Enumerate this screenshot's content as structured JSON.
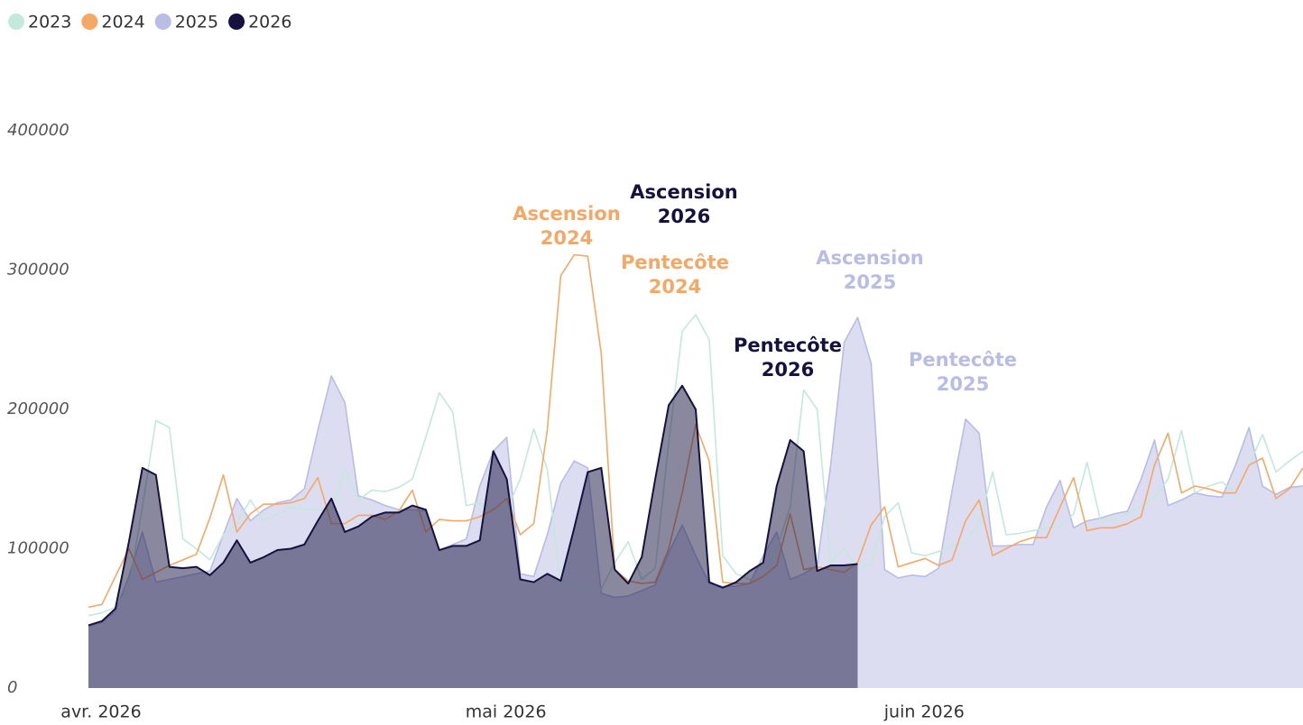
{
  "chart_data": {
    "type": "area",
    "categories": [
      "avr. 2026",
      null,
      null,
      null,
      null,
      null,
      null,
      null,
      null,
      null,
      null,
      null,
      null,
      null,
      null,
      null,
      null,
      null,
      null,
      null,
      null,
      null,
      null,
      null,
      null,
      null,
      null,
      null,
      null,
      null,
      "mai 2026",
      null,
      null,
      null,
      null,
      null,
      null,
      null,
      null,
      null,
      null,
      null,
      null,
      null,
      null,
      null,
      null,
      null,
      null,
      null,
      null,
      null,
      null,
      null,
      null,
      null,
      null,
      null,
      null,
      null,
      null,
      "juin 2026",
      null,
      null,
      null,
      null,
      null,
      null,
      null,
      null,
      null,
      null,
      null,
      null,
      null,
      null,
      null,
      null,
      null,
      null,
      null,
      null,
      null,
      null,
      null,
      null,
      null,
      null,
      null,
      null,
      null
    ],
    "ylim": [
      0,
      400000
    ],
    "yticks": [
      0,
      100000,
      200000,
      300000,
      400000
    ],
    "grid": false,
    "legend": "top-left",
    "series": [
      {
        "name": "2023",
        "color": "#c3e8dc",
        "style": "line",
        "values": [
          52000,
          54000,
          58000,
          72000,
          130000,
          192000,
          187000,
          107000,
          100000,
          92000,
          110000,
          118000,
          135000,
          120000,
          125000,
          130000,
          128000,
          128000,
          128000,
          157000,
          135000,
          142000,
          141000,
          144000,
          150000,
          180000,
          212000,
          198000,
          131000,
          133000,
          128000,
          128000,
          150000,
          186000,
          157000,
          74000,
          73000,
          72000,
          71000,
          90000,
          105000,
          78000,
          86000,
          176000,
          256000,
          268000,
          250000,
          95000,
          82000,
          78000,
          80000,
          100000,
          130000,
          214000,
          200000,
          90000,
          100000,
          85000,
          90000,
          123000,
          133000,
          97000,
          95000,
          98000,
          102000,
          105000,
          118000,
          155000,
          110000,
          111000,
          113000,
          115000,
          116000,
          125000,
          162000,
          120000,
          121000,
          125000,
          130000,
          137000,
          150000,
          185000,
          140000,
          145000,
          148000,
          140000,
          160000,
          182000,
          155000,
          163000,
          170000
        ]
      },
      {
        "name": "2024",
        "color": "#f4a866",
        "style": "line",
        "values": [
          58000,
          60000,
          80000,
          100000,
          78000,
          83000,
          88000,
          92000,
          96000,
          122000,
          153000,
          112000,
          125000,
          132000,
          132000,
          133000,
          136000,
          151000,
          118000,
          118000,
          124000,
          124000,
          121000,
          127000,
          142000,
          112000,
          121000,
          120000,
          120000,
          123000,
          128000,
          136000,
          110000,
          118000,
          185000,
          296000,
          311000,
          310000,
          240000,
          85000,
          77000,
          75000,
          76000,
          100000,
          140000,
          189000,
          163000,
          76000,
          75000,
          75000,
          80000,
          88000,
          125000,
          85000,
          87000,
          85000,
          83000,
          90000,
          117000,
          130000,
          87000,
          90000,
          93000,
          88000,
          92000,
          120000,
          135000,
          95000,
          100000,
          105000,
          108000,
          108000,
          130000,
          151000,
          113000,
          115000,
          115000,
          118000,
          123000,
          160000,
          183000,
          140000,
          145000,
          143000,
          140000,
          140000,
          160000,
          165000,
          136000,
          143000,
          158000
        ]
      },
      {
        "name": "2025",
        "color": "#b9bce4",
        "style": "area",
        "values": [
          44000,
          47000,
          55000,
          80000,
          112000,
          76000,
          78000,
          80000,
          82000,
          84000,
          110000,
          136000,
          120000,
          128000,
          133000,
          135000,
          143000,
          185000,
          224000,
          205000,
          138000,
          135000,
          131000,
          128000,
          128000,
          127000,
          99000,
          103000,
          107000,
          145000,
          170000,
          180000,
          82000,
          80000,
          110000,
          147000,
          163000,
          158000,
          68000,
          65000,
          66000,
          70000,
          74000,
          97000,
          117000,
          95000,
          75000,
          73000,
          73000,
          75000,
          95000,
          112000,
          78000,
          82000,
          88000,
          160000,
          248000,
          266000,
          233000,
          85000,
          79000,
          81000,
          80000,
          86000,
          142000,
          193000,
          183000,
          102000,
          102000,
          103000,
          103000,
          130000,
          149000,
          115000,
          120000,
          122000,
          125000,
          127000,
          150000,
          178000,
          131000,
          135000,
          140000,
          138000,
          137000,
          160000,
          187000,
          145000,
          139000,
          144000,
          145000
        ]
      },
      {
        "name": "2026",
        "color": "#15123f",
        "style": "area",
        "values": [
          45000,
          48000,
          57000,
          105000,
          158000,
          153000,
          87000,
          86000,
          87000,
          81000,
          90000,
          106000,
          90000,
          94000,
          99000,
          100000,
          103000,
          120000,
          136000,
          112000,
          116000,
          123000,
          126000,
          126000,
          131000,
          128000,
          99000,
          102000,
          102000,
          106000,
          170000,
          150000,
          78000,
          76000,
          82000,
          77000,
          115000,
          155000,
          158000,
          85000,
          75000,
          94000,
          150000,
          203000,
          217000,
          200000,
          76000,
          72000,
          76000,
          84000,
          90000,
          145000,
          178000,
          170000,
          84000,
          88000,
          88000,
          89000,
          null,
          null,
          null,
          null,
          null,
          null,
          null,
          null,
          null,
          null,
          null,
          null,
          null,
          null,
          null,
          null,
          null,
          null,
          null,
          null,
          null,
          null,
          null,
          null,
          null,
          null,
          null,
          null,
          null,
          null,
          null,
          null,
          null
        ]
      }
    ],
    "annotations": [
      {
        "lines": [
          "Ascension",
          "2024"
        ],
        "color": "#f4a866"
      },
      {
        "lines": [
          "Ascension",
          "2026"
        ],
        "color": "#15123f"
      },
      {
        "lines": [
          "Pentecôte",
          "2024"
        ],
        "color": "#f4a866"
      },
      {
        "lines": [
          "Ascension",
          "2025"
        ],
        "color": "#b9bce4"
      },
      {
        "lines": [
          "Pentecôte",
          "2026"
        ],
        "color": "#15123f"
      },
      {
        "lines": [
          "Pentecôte",
          "2025"
        ],
        "color": "#b9bce4"
      }
    ]
  }
}
